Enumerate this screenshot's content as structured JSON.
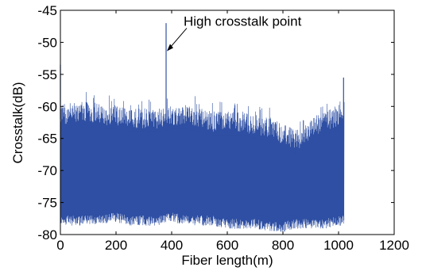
{
  "chart_data": {
    "type": "line",
    "title": "",
    "xlabel": "Fiber length(m)",
    "ylabel": "Crosstalk(dB)",
    "xlim": [
      0,
      1200
    ],
    "ylim": [
      -80,
      -45
    ],
    "xticks": [
      0,
      200,
      400,
      600,
      800,
      1000,
      1200
    ],
    "yticks": [
      -80,
      -75,
      -70,
      -65,
      -60,
      -55,
      -50,
      -45
    ],
    "xtick_labels": [
      "0",
      "200",
      "400",
      "600",
      "800",
      "1000",
      "1200"
    ],
    "ytick_labels": [
      "-80",
      "-75",
      "-70",
      "-65",
      "-60",
      "-55",
      "-50",
      "-45"
    ],
    "grid": false,
    "data_extent_x": [
      0,
      1020
    ],
    "series": [
      {
        "color": "#2e4fa3",
        "x": [
          0,
          50,
          100,
          150,
          200,
          250,
          300,
          350,
          400,
          450,
          500,
          550,
          600,
          650,
          700,
          750,
          800,
          850,
          900,
          950,
          1000,
          1020
        ],
        "upper_envelope": [
          -62,
          -61.5,
          -61.5,
          -62,
          -62,
          -62.5,
          -62.5,
          -62.5,
          -62,
          -62,
          -62.5,
          -63,
          -63,
          -63,
          -63.5,
          -64,
          -65,
          -66,
          -64,
          -63,
          -62,
          -61
        ],
        "lower_envelope": [
          -77.5,
          -77.5,
          -77.5,
          -77.5,
          -77,
          -77.5,
          -77.5,
          -77.5,
          -77,
          -77.5,
          -77.5,
          -77.5,
          -78,
          -78,
          -78,
          -78.5,
          -78.5,
          -78,
          -78,
          -78,
          -77.5,
          -77.5
        ]
      }
    ],
    "spikes": [
      {
        "x": 0,
        "y": -53.5
      },
      {
        "x": 380,
        "y": -47
      },
      {
        "x": 1018,
        "y": -55.5
      }
    ],
    "annotations": [
      {
        "text": "High crosstalk point",
        "x": 380,
        "y": -51.5
      }
    ]
  }
}
